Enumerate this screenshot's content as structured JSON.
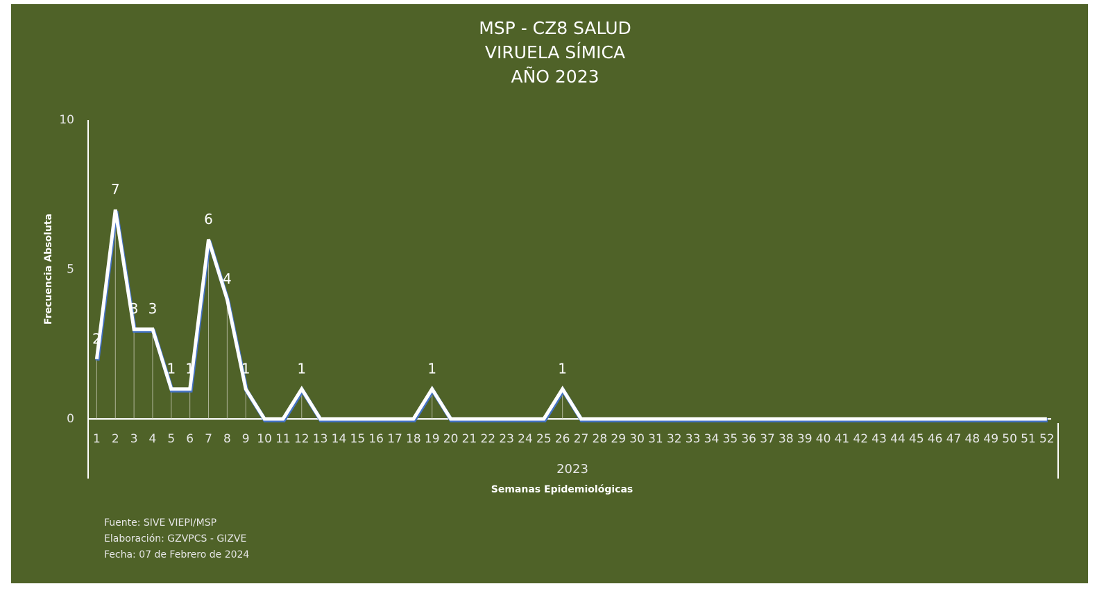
{
  "chart_data": {
    "type": "line",
    "title_lines": [
      "MSP - CZ8 SALUD",
      "VIRUELA SÍMICA",
      "AÑO 2023"
    ],
    "y_label": "Frecuencia Absoluta",
    "x_label": "Semanas Epidemiológicas",
    "x_group": "2023",
    "categories": [
      "1",
      "2",
      "3",
      "4",
      "5",
      "6",
      "7",
      "8",
      "9",
      "10",
      "11",
      "12",
      "13",
      "14",
      "15",
      "16",
      "17",
      "18",
      "19",
      "20",
      "21",
      "22",
      "23",
      "24",
      "25",
      "26",
      "27",
      "28",
      "29",
      "30",
      "31",
      "32",
      "33",
      "34",
      "35",
      "36",
      "37",
      "38",
      "39",
      "40",
      "41",
      "42",
      "43",
      "44",
      "45",
      "46",
      "47",
      "48",
      "49",
      "50",
      "51",
      "52"
    ],
    "values": [
      2,
      7,
      3,
      3,
      1,
      1,
      6,
      4,
      1,
      0,
      0,
      1,
      0,
      0,
      0,
      0,
      0,
      0,
      1,
      0,
      0,
      0,
      0,
      0,
      0,
      1,
      0,
      0,
      0,
      0,
      0,
      0,
      0,
      0,
      0,
      0,
      0,
      0,
      0,
      0,
      0,
      0,
      0,
      0,
      0,
      0,
      0,
      0,
      0,
      0,
      0,
      0
    ],
    "value_labels": [
      "2",
      "7",
      "3",
      "3",
      "1",
      "1",
      "6",
      "4",
      "1",
      null,
      null,
      "1",
      null,
      null,
      null,
      null,
      null,
      null,
      "1",
      null,
      null,
      null,
      null,
      null,
      null,
      "1",
      null,
      null,
      null,
      null,
      null,
      null,
      null,
      null,
      null,
      null,
      null,
      null,
      null,
      null,
      null,
      null,
      null,
      null,
      null,
      null,
      null,
      null,
      null,
      null,
      null,
      null
    ],
    "color": "#ffffff",
    "ylim": [
      0,
      10
    ],
    "yticks": [
      0,
      5,
      10
    ],
    "notes": [
      "Fuente:  SIVE VIEPI/MSP",
      "Elaboración: GZVPCS - GIZVE",
      "Fecha: 07 de Febrero de  2024"
    ]
  }
}
